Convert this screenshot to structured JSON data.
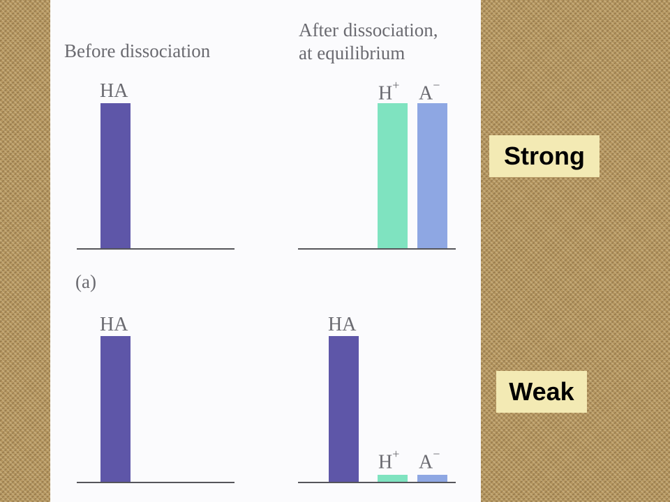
{
  "headings": {
    "before": "Before dissociation",
    "after_line1": "After dissociation,",
    "after_line2": "at equilibrium"
  },
  "part_label": "(a)",
  "labels": {
    "ha": "HA",
    "h": "H",
    "a": "A",
    "plus": "+",
    "minus": "−"
  },
  "tags": {
    "strong": "Strong",
    "weak": "Weak"
  },
  "colors": {
    "ha": "#5e56a8",
    "h_plus": "#7fe3c0",
    "a_minus": "#8ea7e3",
    "panel": "#fbfbfd",
    "tag_bg": "#f3eab4"
  },
  "chart_data": [
    {
      "type": "bar",
      "name": "strong-before",
      "categories": [
        "HA"
      ],
      "values": [
        1.0
      ]
    },
    {
      "type": "bar",
      "name": "strong-after",
      "categories": [
        "H+",
        "A−"
      ],
      "values": [
        1.0,
        1.0
      ]
    },
    {
      "type": "bar",
      "name": "weak-before",
      "categories": [
        "HA"
      ],
      "values": [
        1.0
      ]
    },
    {
      "type": "bar",
      "name": "weak-after",
      "categories": [
        "HA",
        "H+",
        "A−"
      ],
      "values": [
        0.95,
        0.03,
        0.03
      ]
    }
  ]
}
